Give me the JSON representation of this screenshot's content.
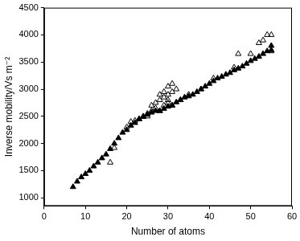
{
  "chart_data": {
    "type": "scatter",
    "x_label": "Number of atoms",
    "y_label": "Inverse mobility/Vs m⁻²",
    "xlim": [
      0,
      60
    ],
    "xticks": [
      0,
      10,
      20,
      30,
      40,
      50,
      60
    ],
    "ylim": [
      850,
      4500
    ],
    "yticks": [
      1000,
      1500,
      2000,
      2500,
      3000,
      3500,
      4000,
      4500
    ],
    "grid": false,
    "series": [
      {
        "color": "#000000",
        "marker": "triangle",
        "x": [
          7,
          8,
          9,
          10,
          11,
          12,
          13,
          14,
          15,
          16,
          17,
          18,
          19,
          20,
          21,
          22,
          23,
          24,
          25,
          26,
          27,
          28,
          29,
          30,
          31,
          32,
          33,
          34,
          35,
          36,
          37,
          38,
          39,
          40,
          41,
          42,
          43,
          44,
          45,
          46,
          47,
          48,
          49,
          50,
          51,
          52,
          53,
          54,
          55,
          55
        ],
        "values": [
          1200,
          1300,
          1380,
          1440,
          1500,
          1580,
          1650,
          1730,
          1800,
          1900,
          2000,
          2100,
          2200,
          2250,
          2330,
          2380,
          2450,
          2490,
          2530,
          2570,
          2600,
          2600,
          2640,
          2680,
          2700,
          2760,
          2800,
          2850,
          2870,
          2900,
          2950,
          3000,
          3050,
          3100,
          3150,
          3200,
          3230,
          3270,
          3300,
          3350,
          3380,
          3420,
          3470,
          3520,
          3560,
          3600,
          3650,
          3700,
          3720,
          3800
        ]
      },
      {
        "color": "#000000",
        "marker": "triangle_open",
        "x": [
          16,
          17,
          20,
          21,
          22,
          23,
          24,
          25,
          25,
          26,
          26,
          27,
          27,
          28,
          28,
          28,
          29,
          29,
          29,
          30,
          30,
          30,
          30,
          31,
          31,
          31,
          32,
          33,
          35,
          38,
          41,
          46,
          47,
          50,
          52,
          53,
          54,
          55,
          55
        ],
        "values": [
          1650,
          1920,
          2300,
          2400,
          2420,
          2450,
          2500,
          2500,
          2550,
          2600,
          2700,
          2650,
          2750,
          2600,
          2800,
          2900,
          2700,
          2850,
          2950,
          2800,
          2900,
          3050,
          2750,
          2950,
          3100,
          2700,
          3000,
          2800,
          2900,
          3000,
          3200,
          3400,
          3650,
          3650,
          3850,
          3900,
          4000,
          4000,
          3700
        ]
      }
    ]
  }
}
